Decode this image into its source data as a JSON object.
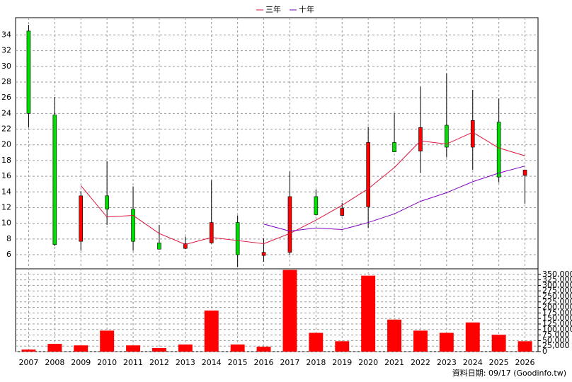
{
  "chart_data": {
    "type": "candlestick",
    "categories": [
      "2007",
      "2008",
      "2009",
      "2010",
      "2011",
      "2012",
      "2013",
      "2014",
      "2015",
      "2016",
      "2017",
      "2018",
      "2019",
      "2020",
      "2021",
      "2022",
      "2023",
      "2024",
      "2025",
      "2026"
    ],
    "open": [
      34.5,
      23.8,
      7.7,
      13.5,
      11.8,
      7.5,
      6.8,
      7.5,
      10.1,
      5.9,
      6.3,
      13.4,
      11.0,
      12.1,
      20.3,
      19.2,
      22.5,
      19.7,
      22.9,
      16.1
    ],
    "high": [
      35.3,
      26.1,
      14.1,
      17.9,
      14.7,
      9.8,
      8.3,
      15.5,
      11.0,
      8.1,
      16.6,
      14.3,
      12.6,
      22.3,
      24.0,
      27.4,
      29.1,
      27.0,
      25.9,
      16.8
    ],
    "low": [
      22.2,
      7.1,
      6.5,
      9.8,
      6.5,
      6.7,
      6.7,
      7.4,
      4.4,
      5.1,
      6.0,
      11.0,
      10.9,
      9.4,
      19.1,
      16.4,
      18.4,
      16.8,
      15.2,
      12.5
    ],
    "close": [
      24.0,
      7.3,
      13.5,
      11.8,
      7.7,
      6.7,
      7.4,
      10.1,
      6.0,
      6.3,
      13.4,
      11.1,
      11.9,
      20.3,
      19.1,
      22.2,
      19.7,
      23.1,
      15.9,
      16.8
    ],
    "up_color": "#ff0000",
    "down_color": "#00dd00",
    "series": [
      {
        "name": "三年",
        "color": "#dc143c",
        "values": [
          null,
          null,
          14.8,
          10.8,
          11.0,
          8.7,
          7.3,
          8.2,
          7.8,
          7.4,
          8.7,
          10.4,
          12.3,
          14.4,
          17.1,
          20.5,
          20.1,
          21.6,
          19.6,
          18.6
        ]
      },
      {
        "name": "十年",
        "color": "#8000c0",
        "values": [
          null,
          null,
          null,
          null,
          null,
          null,
          null,
          null,
          null,
          9.9,
          9.0,
          9.4,
          9.2,
          10.1,
          11.2,
          12.8,
          13.9,
          15.3,
          16.4,
          17.3
        ]
      }
    ],
    "volume": {
      "color": "#ff0000",
      "axis": "y2",
      "values": [
        9000,
        35000,
        28000,
        95000,
        28000,
        16000,
        32000,
        186000,
        32000,
        22000,
        370000,
        85000,
        47000,
        344000,
        145000,
        95000,
        85000,
        132000,
        76000,
        47000
      ]
    },
    "ylim": [
      4.2,
      36.2
    ],
    "yticks": [
      6,
      8,
      10,
      12,
      14,
      16,
      18,
      20,
      22,
      24,
      26,
      28,
      30,
      32,
      34
    ],
    "y2lim": [
      0,
      375000
    ],
    "y2ticks": [
      0,
      {
        "value": 25000,
        "label": "25,000"
      },
      {
        "value": 50000,
        "label": "50,000"
      },
      {
        "value": 75000,
        "label": "75,000"
      },
      {
        "value": 100000,
        "label": "100,000"
      },
      {
        "value": 125000,
        "label": "125,000"
      },
      {
        "value": 150000,
        "label": "150,000"
      },
      {
        "value": 175000,
        "label": "175,000"
      },
      {
        "value": 200000,
        "label": "200,000"
      },
      {
        "value": 225000,
        "label": "225,000"
      },
      {
        "value": 250000,
        "label": "250,000"
      },
      {
        "value": 275000,
        "label": "275,000"
      },
      {
        "value": 300000,
        "label": "300,000"
      },
      {
        "value": 325000,
        "label": "325,000"
      },
      {
        "value": 350000,
        "label": "350,000"
      }
    ],
    "grid": true,
    "source_note": "資料日期: 09/17 (Goodinfo.tw)"
  }
}
